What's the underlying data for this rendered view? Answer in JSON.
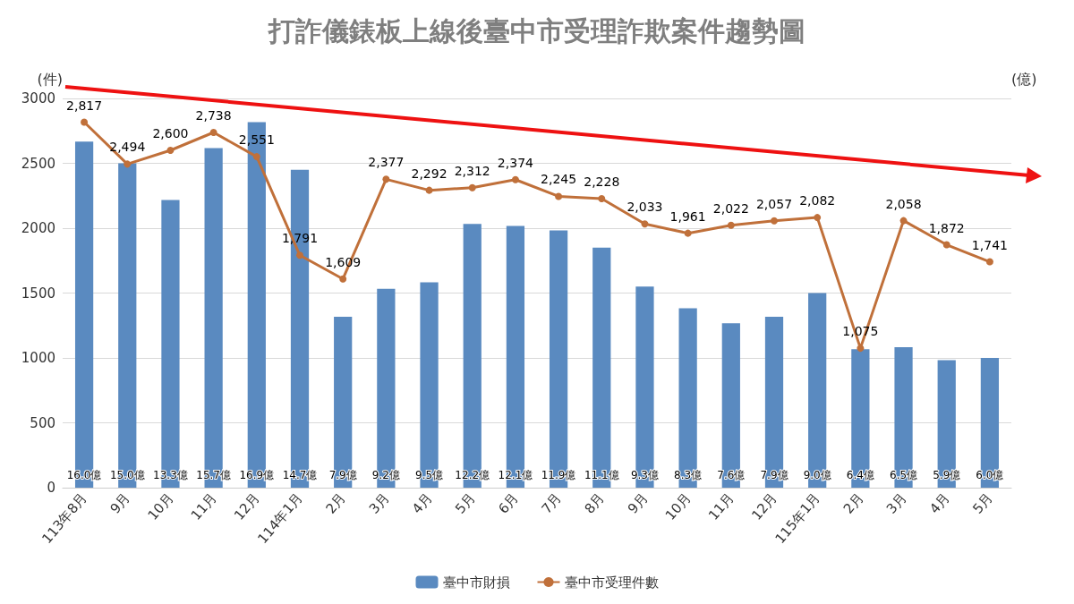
{
  "chart_data": {
    "type": "bar",
    "title": "打詐儀錶板上線後臺中市受理詐欺案件趨勢圖",
    "ylabel": "(件)",
    "y2label": "(億)",
    "categories": [
      "113年8月",
      "9月",
      "10月",
      "11月",
      "12月",
      "114年1月",
      "2月",
      "3月",
      "4月",
      "5月",
      "6月",
      "7月",
      "8月",
      "9月",
      "10月",
      "11月",
      "12月",
      "115年1月",
      "2月",
      "3月",
      "4月",
      "5月"
    ],
    "series": [
      {
        "name": "臺中市財損",
        "axis": "y2",
        "color": "#5a8ac0",
        "values": [
          16.0,
          15.0,
          13.3,
          15.7,
          16.9,
          14.7,
          7.9,
          9.2,
          9.5,
          12.2,
          12.1,
          11.9,
          11.1,
          9.3,
          8.3,
          7.6,
          7.9,
          9.0,
          6.4,
          6.5,
          5.9,
          6.0
        ],
        "value_labels": [
          "16.0億",
          "15.0億",
          "13.3億",
          "15.7億",
          "16.9億",
          "14.7億",
          "7.9億",
          "9.2億",
          "9.5億",
          "12.2億",
          "12.1億",
          "11.9億",
          "11.1億",
          "9.3億",
          "8.3億",
          "7.6億",
          "7.9億",
          "9.0億",
          "6.4億",
          "6.5億",
          "5.9億",
          "6.0億"
        ]
      },
      {
        "name": "臺中市受理件數",
        "type": "line",
        "color": "#c0703a",
        "marker": "circle",
        "values": [
          2817,
          2494,
          2600,
          2738,
          2551,
          1791,
          1609,
          2377,
          2292,
          2312,
          2374,
          2245,
          2228,
          2033,
          1961,
          2022,
          2057,
          2082,
          1075,
          2058,
          1872,
          1741
        ],
        "value_labels": [
          "2,817",
          "2,494",
          "2,600",
          "2,738",
          "2,551",
          "1,791",
          "1,609",
          "2,377",
          "2,292",
          "2,312",
          "2,374",
          "2,245",
          "2,228",
          "2,033",
          "1,961",
          "2,022",
          "2,057",
          "2,082",
          "1,075",
          "2,058",
          "1,872",
          "1,741"
        ]
      }
    ],
    "ylim": [
      0,
      3000
    ],
    "yticks": [
      0,
      500,
      1000,
      1500,
      2000,
      2500,
      3000
    ],
    "y2lim": [
      0,
      18
    ],
    "grid": "y",
    "legend": "bottom"
  }
}
